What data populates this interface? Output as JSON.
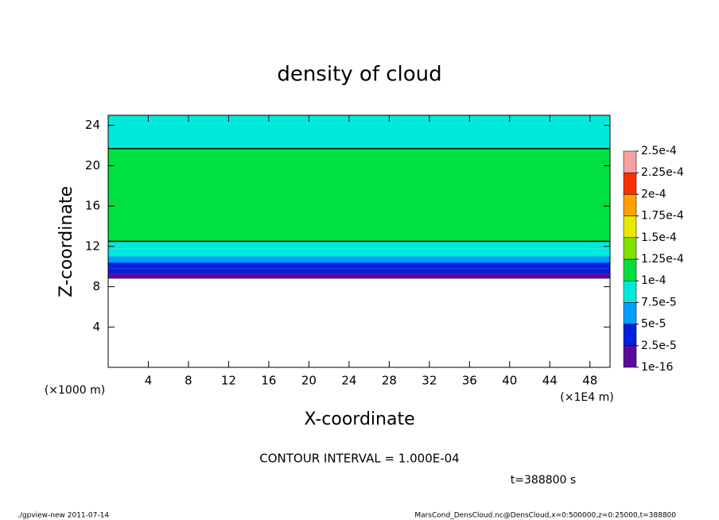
{
  "chart_data": {
    "type": "heatmap",
    "title": "density of cloud",
    "x_label": "X-coordinate",
    "y_label": "Z-coordinate",
    "x_unit": "(×1E4 m)",
    "y_unit": "(×1000 m)",
    "xlim": [
      0,
      50
    ],
    "ylim": [
      0,
      25
    ],
    "xticks": [
      4,
      8,
      12,
      16,
      20,
      24,
      28,
      32,
      36,
      40,
      44,
      48
    ],
    "yticks": [
      4,
      8,
      12,
      16,
      20,
      24
    ],
    "field": {
      "edges": [
        8.8,
        9.3,
        9.8,
        10.4,
        11,
        11.8,
        12.5,
        21.7,
        25
      ],
      "values": [
        1e-05,
        3e-05,
        4e-05,
        6e-05,
        8.5e-05,
        9.5e-05,
        0.00011,
        9e-05
      ]
    },
    "contour_level": 0.0001,
    "contour_color": "#000000",
    "colorbar": {
      "levels": [
        {
          "value": 1e-16,
          "label": "1e-16"
        },
        {
          "value": 2.5e-05,
          "label": "2.5e-5"
        },
        {
          "value": 5e-05,
          "label": "5e-5"
        },
        {
          "value": 7.5e-05,
          "label": "7.5e-5"
        },
        {
          "value": 0.0001,
          "label": "1e-4"
        },
        {
          "value": 0.000125,
          "label": "1.25e-4"
        },
        {
          "value": 0.00015,
          "label": "1.5e-4"
        },
        {
          "value": 0.000175,
          "label": "1.75e-4"
        },
        {
          "value": 0.0002,
          "label": "2e-4"
        },
        {
          "value": 0.000225,
          "label": "2.25e-4"
        },
        {
          "value": 0.00025,
          "label": "2.5e-4"
        }
      ],
      "colors": [
        "#5a0a9a",
        "#0020e0",
        "#00a0ff",
        "#00eadc",
        "#00e040",
        "#80e000",
        "#e8e800",
        "#ffa000",
        "#ff3000",
        "#f8a0a0"
      ]
    },
    "contour_interval": "CONTOUR INTERVAL = 1.000E-04",
    "time": "t=388800 s",
    "footer_left": "./gpview-new  2011-07-14",
    "footer_right": "MarsCond_DensCloud.nc@DensCloud,x=0:500000,z=0:25000,t=388800"
  }
}
